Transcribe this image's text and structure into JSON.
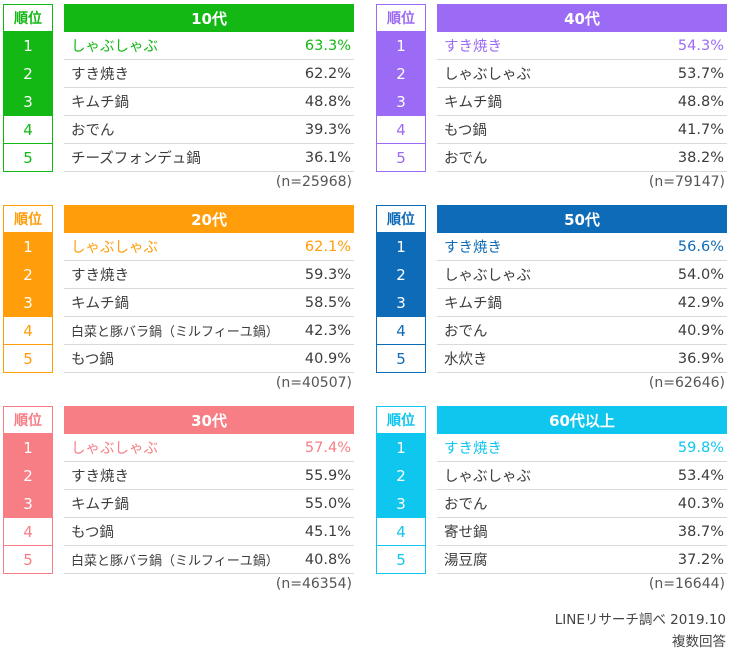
{
  "rank_header": "順位",
  "chart_data": [
    {
      "type": "table",
      "title": "10代",
      "color": "#14b814",
      "n": "(n=25968)",
      "ranks": [
        "1",
        "2",
        "3",
        "4",
        "5"
      ],
      "items": [
        {
          "name": "しゃぶしゃぶ",
          "pct": "63.3%"
        },
        {
          "name": "すき焼き",
          "pct": "62.2%"
        },
        {
          "name": "キムチ鍋",
          "pct": "48.8%"
        },
        {
          "name": "おでん",
          "pct": "39.3%"
        },
        {
          "name": "チーズフォンデュ鍋",
          "pct": "36.1%"
        }
      ]
    },
    {
      "type": "table",
      "title": "40代",
      "color": "#9b6bf5",
      "n": "(n=79147)",
      "ranks": [
        "1",
        "2",
        "3",
        "4",
        "5"
      ],
      "items": [
        {
          "name": "すき焼き",
          "pct": "54.3%"
        },
        {
          "name": "しゃぶしゃぶ",
          "pct": "53.7%"
        },
        {
          "name": "キムチ鍋",
          "pct": "48.8%"
        },
        {
          "name": "もつ鍋",
          "pct": "41.7%"
        },
        {
          "name": "おでん",
          "pct": "38.2%"
        }
      ]
    },
    {
      "type": "table",
      "title": "20代",
      "color": "#ff9d0a",
      "n": "(n=40507)",
      "ranks": [
        "1",
        "2",
        "3",
        "4",
        "5"
      ],
      "items": [
        {
          "name": "しゃぶしゃぶ",
          "pct": "62.1%"
        },
        {
          "name": "すき焼き",
          "pct": "59.3%"
        },
        {
          "name": "キムチ鍋",
          "pct": "58.5%"
        },
        {
          "name": "白菜と豚バラ鍋（ミルフィーユ鍋）",
          "pct": "42.3%"
        },
        {
          "name": "もつ鍋",
          "pct": "40.9%"
        }
      ]
    },
    {
      "type": "table",
      "title": "50代",
      "color": "#0e6bb8",
      "n": "(n=62646)",
      "ranks": [
        "1",
        "2",
        "3",
        "4",
        "5"
      ],
      "items": [
        {
          "name": "すき焼き",
          "pct": "56.6%"
        },
        {
          "name": "しゃぶしゃぶ",
          "pct": "54.0%"
        },
        {
          "name": "キムチ鍋",
          "pct": "42.9%"
        },
        {
          "name": "おでん",
          "pct": "40.9%"
        },
        {
          "name": "水炊き",
          "pct": "36.9%"
        }
      ]
    },
    {
      "type": "table",
      "title": "30代",
      "color": "#f77e85",
      "n": "(n=46354)",
      "ranks": [
        "1",
        "2",
        "3",
        "4",
        "5"
      ],
      "items": [
        {
          "name": "しゃぶしゃぶ",
          "pct": "57.4%"
        },
        {
          "name": "すき焼き",
          "pct": "55.9%"
        },
        {
          "name": "キムチ鍋",
          "pct": "55.0%"
        },
        {
          "name": "もつ鍋",
          "pct": "45.1%"
        },
        {
          "name": "白菜と豚バラ鍋（ミルフィーユ鍋）",
          "pct": "40.8%"
        }
      ]
    },
    {
      "type": "table",
      "title": "60代以上",
      "color": "#0fc6ee",
      "n": "(n=16644)",
      "ranks": [
        "1",
        "2",
        "3",
        "4",
        "5"
      ],
      "items": [
        {
          "name": "すき焼き",
          "pct": "59.8%"
        },
        {
          "name": "しゃぶしゃぶ",
          "pct": "53.4%"
        },
        {
          "name": "おでん",
          "pct": "40.3%"
        },
        {
          "name": "寄せ鍋",
          "pct": "38.7%"
        },
        {
          "name": "湯豆腐",
          "pct": "37.2%"
        }
      ]
    }
  ],
  "footer": {
    "source": "LINEリサーチ調べ 2019.10",
    "note": "複数回答"
  }
}
